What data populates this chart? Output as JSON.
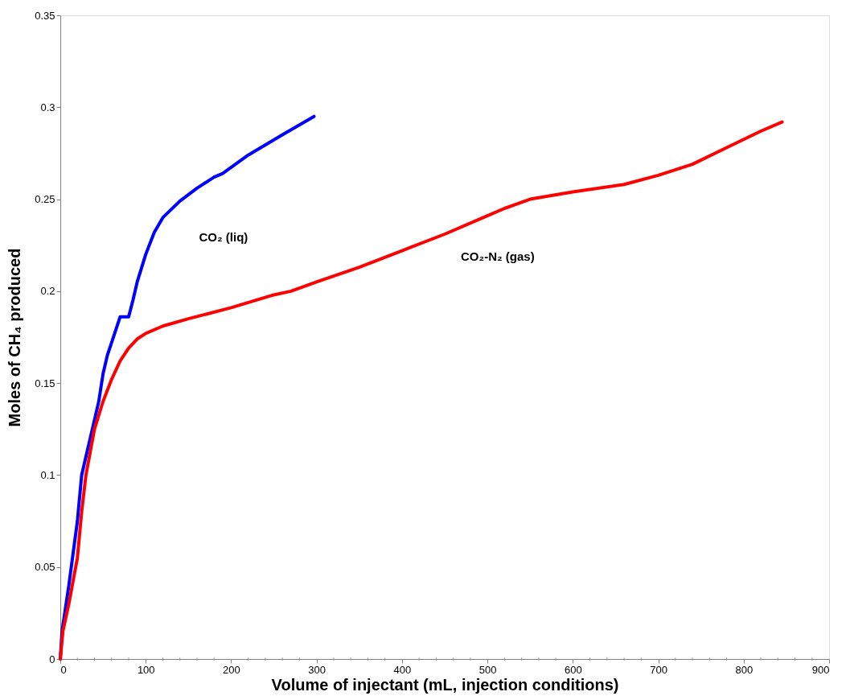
{
  "chart_data": {
    "type": "line",
    "xlabel": "Volume of injectant (mL, injection conditions)",
    "ylabel": "Moles of CH₄ produced",
    "xlim": [
      0,
      900
    ],
    "xticks": [
      0,
      100,
      200,
      300,
      400,
      500,
      600,
      700,
      800,
      900
    ],
    "ylim": [
      0,
      0.35
    ],
    "yticks": [
      0,
      0.05,
      0.1,
      0.15,
      0.2,
      0.25,
      0.3,
      0.35
    ],
    "grid": false,
    "legend": false,
    "marker": "none",
    "line_style": "solid",
    "series": [
      {
        "name": "CO₂ (liq)",
        "color": "#0000ff",
        "x": [
          0,
          2,
          10,
          20,
          25,
          30,
          40,
          45,
          50,
          55,
          60,
          70,
          80,
          85,
          90,
          100,
          110,
          120,
          140,
          160,
          180,
          190,
          220,
          260,
          297
        ],
        "values": [
          0,
          0.015,
          0.04,
          0.075,
          0.1,
          0.11,
          0.13,
          0.14,
          0.155,
          0.165,
          0.172,
          0.186,
          0.186,
          0.195,
          0.205,
          0.22,
          0.232,
          0.24,
          0.249,
          0.256,
          0.262,
          0.264,
          0.274,
          0.285,
          0.295
        ]
      },
      {
        "name": "CO₂-N₂ (gas)",
        "color": "#ff0000",
        "x": [
          0,
          3,
          10,
          20,
          25,
          30,
          40,
          50,
          60,
          70,
          80,
          90,
          100,
          120,
          150,
          200,
          250,
          270,
          300,
          350,
          400,
          450,
          500,
          520,
          550,
          600,
          660,
          700,
          740,
          780,
          820,
          845
        ],
        "values": [
          0,
          0.015,
          0.03,
          0.055,
          0.08,
          0.1,
          0.125,
          0.14,
          0.152,
          0.162,
          0.169,
          0.174,
          0.177,
          0.181,
          0.185,
          0.191,
          0.198,
          0.2,
          0.205,
          0.213,
          0.222,
          0.231,
          0.241,
          0.245,
          0.25,
          0.254,
          0.258,
          0.263,
          0.269,
          0.278,
          0.287,
          0.292
        ]
      }
    ]
  }
}
